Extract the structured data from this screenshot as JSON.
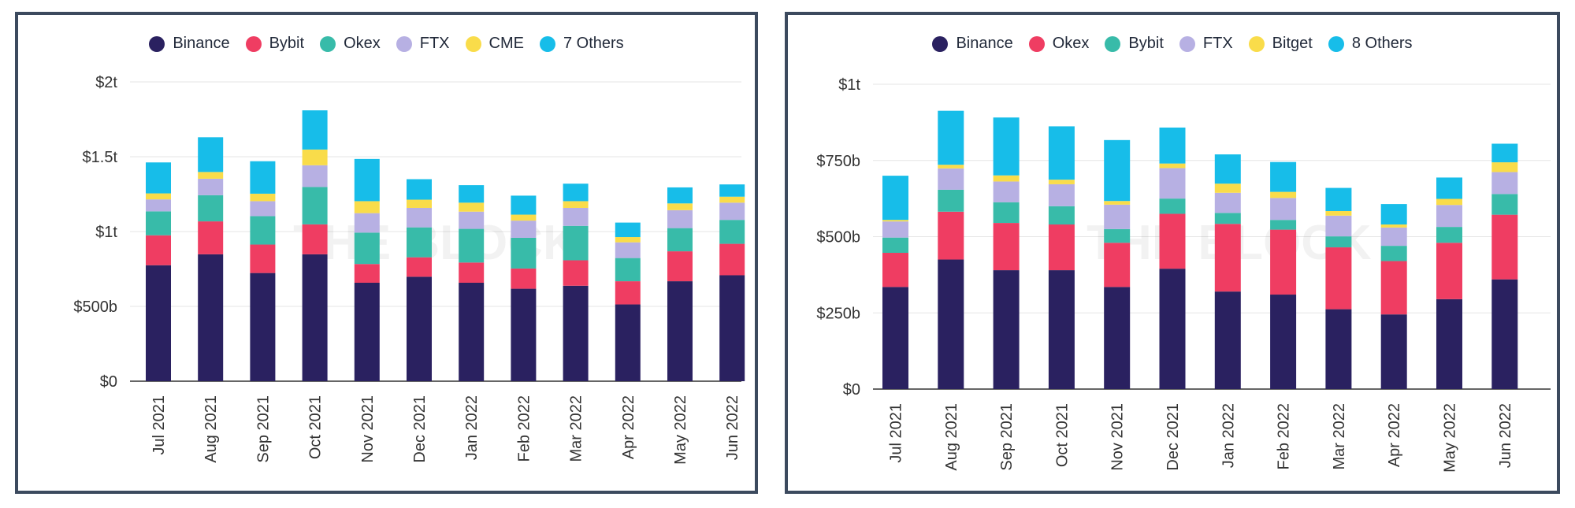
{
  "chart_data": [
    {
      "type": "bar",
      "stacked": true,
      "title": "",
      "xlabel": "",
      "ylabel": "",
      "ylim": [
        0,
        2000
      ],
      "yticks": [
        0,
        500,
        1000,
        1500,
        2000
      ],
      "ytick_labels": [
        "$0",
        "$500b",
        "$1t",
        "$1.5t",
        "$2t"
      ],
      "grid": true,
      "legend": "top-center",
      "watermark": "THE BLOCK",
      "categories": [
        "Jul 2021",
        "Aug 2021",
        "Sep 2021",
        "Oct 2021",
        "Nov 2021",
        "Dec 2021",
        "Jan 2022",
        "Feb 2022",
        "Mar 2022",
        "Apr 2022",
        "May 2022",
        "Jun 2022"
      ],
      "series": [
        {
          "name": "Binance",
          "color": "#2a2160",
          "values": [
            775,
            848,
            723,
            848,
            658,
            698,
            658,
            618,
            638,
            513,
            668,
            708
          ]
        },
        {
          "name": "Bybit",
          "color": "#ef3d62",
          "values": [
            200,
            220,
            190,
            200,
            125,
            130,
            135,
            135,
            170,
            155,
            200,
            210
          ]
        },
        {
          "name": "Okex",
          "color": "#38bba9",
          "values": [
            160,
            175,
            190,
            250,
            210,
            200,
            225,
            205,
            230,
            155,
            155,
            160
          ]
        },
        {
          "name": "FTX",
          "color": "#b7b0e3",
          "values": [
            80,
            110,
            100,
            145,
            130,
            130,
            115,
            115,
            120,
            105,
            120,
            115
          ]
        },
        {
          "name": "CME",
          "color": "#f9dc4a",
          "values": [
            40,
            45,
            50,
            105,
            80,
            55,
            60,
            40,
            45,
            35,
            45,
            40
          ]
        },
        {
          "name": "7 Others",
          "color": "#17bde9",
          "values": [
            207,
            232,
            217,
            262,
            282,
            137,
            117,
            127,
            117,
            97,
            107,
            82
          ]
        }
      ]
    },
    {
      "type": "bar",
      "stacked": true,
      "title": "",
      "xlabel": "",
      "ylabel": "",
      "ylim": [
        0,
        1000
      ],
      "yticks": [
        0,
        250,
        500,
        750,
        1000
      ],
      "ytick_labels": [
        "$0",
        "$250b",
        "$500b",
        "$750b",
        "$1t"
      ],
      "grid": true,
      "legend": "top-center",
      "watermark": "THE BLOCK",
      "categories": [
        "Jul 2021",
        "Aug 2021",
        "Sep 2021",
        "Oct 2021",
        "Nov 2021",
        "Dec 2021",
        "Jan 2022",
        "Feb 2022",
        "Mar 2022",
        "Apr 2022",
        "May 2022",
        "Jun 2022"
      ],
      "series": [
        {
          "name": "Binance",
          "color": "#2a2160",
          "values": [
            335,
            425,
            390,
            390,
            335,
            395,
            320,
            310,
            262,
            245,
            295,
            360
          ]
        },
        {
          "name": "Okex",
          "color": "#ef3d62",
          "values": [
            112,
            157,
            155,
            150,
            145,
            180,
            222,
            213,
            203,
            175,
            185,
            212
          ]
        },
        {
          "name": "Bybit",
          "color": "#38bba9",
          "values": [
            50,
            72,
            68,
            60,
            45,
            50,
            36,
            32,
            36,
            50,
            52,
            68
          ]
        },
        {
          "name": "FTX",
          "color": "#b7b0e3",
          "values": [
            53,
            70,
            68,
            72,
            80,
            100,
            66,
            72,
            68,
            60,
            72,
            72
          ]
        },
        {
          "name": "Bitget",
          "color": "#f9dc4a",
          "values": [
            5,
            12,
            20,
            15,
            12,
            15,
            30,
            20,
            15,
            10,
            20,
            32
          ]
        },
        {
          "name": "8 Others",
          "color": "#17bde9",
          "values": [
            145,
            177,
            190,
            175,
            200,
            118,
            96,
            98,
            76,
            67,
            70,
            61
          ]
        }
      ]
    }
  ]
}
